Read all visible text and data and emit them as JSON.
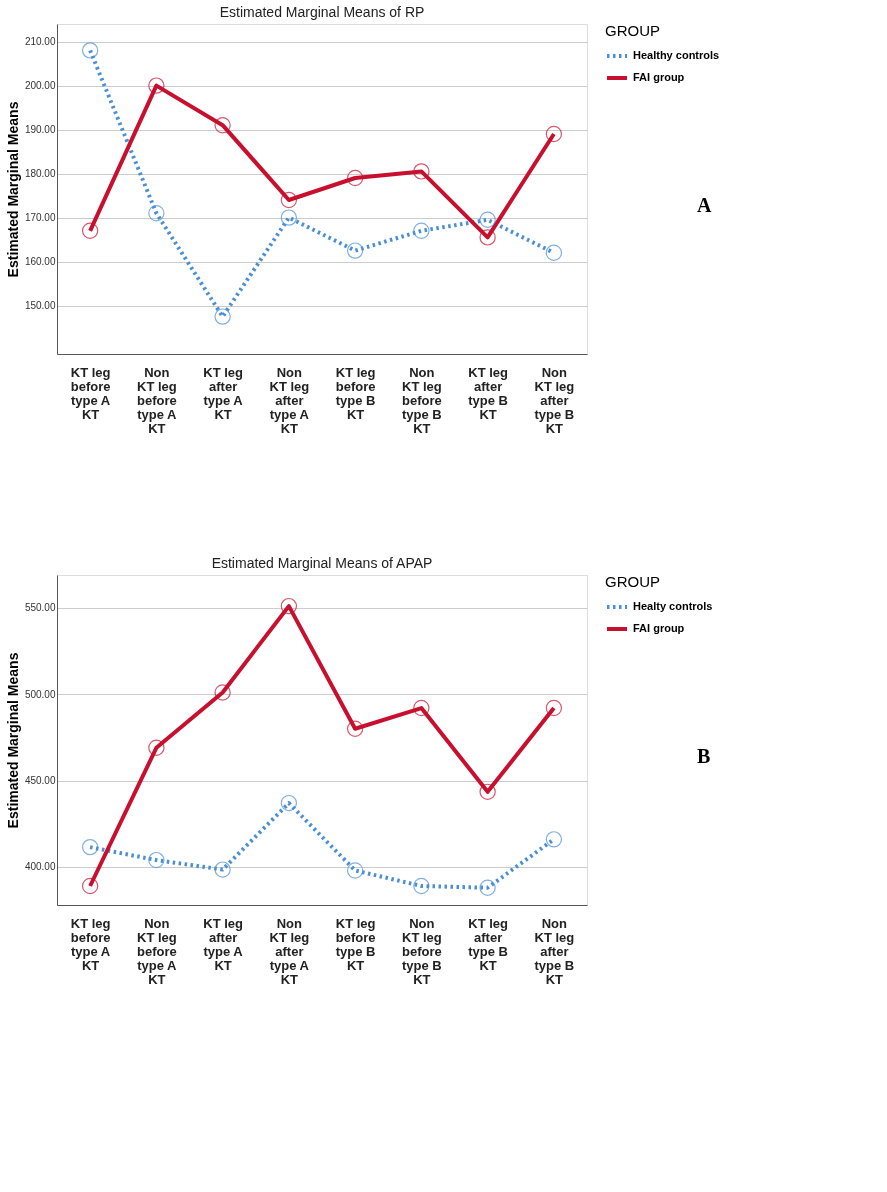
{
  "chart_data": [
    {
      "type": "line",
      "title": "Estimated Marginal Means of RP",
      "ylabel": "Estimated Marginal Means",
      "legend_title": "GROUP",
      "legend": "top right",
      "grid": "y",
      "marker": "circle",
      "categories": [
        "KT leg\nbefore\ntype A\nKT",
        "Non\nKT leg\nbefore\ntype A\nKT",
        "KT leg\nafter\ntype A\nKT",
        "Non\nKT leg\nafter\ntype A\nKT",
        "KT leg\nbefore\ntype B\nKT",
        "Non\nKT leg\nbefore\ntype B\nKT",
        "KT leg\nafter\ntype B\nKT",
        "Non\nKT leg\nafter\ntype B\nKT"
      ],
      "ylim": [
        139,
        214
      ],
      "yticks": [
        {
          "value": 150,
          "label": "150.00"
        },
        {
          "value": 160,
          "label": "160.00"
        },
        {
          "value": 170,
          "label": "170.00"
        },
        {
          "value": 180,
          "label": "180.00"
        },
        {
          "value": 190,
          "label": "190.00"
        },
        {
          "value": 200,
          "label": "200.00"
        },
        {
          "value": 210,
          "label": "210.00"
        }
      ],
      "series": [
        {
          "name": "Healthy controls",
          "color": "#4a8fd6",
          "line_style": "dotted",
          "values": [
            208,
            171,
            147.5,
            170,
            162.5,
            167,
            169.5,
            162
          ]
        },
        {
          "name": "FAI group",
          "color": "#c8102e",
          "line_style": "solid",
          "values": [
            167,
            200,
            191,
            174,
            179,
            180.5,
            165.5,
            189
          ]
        }
      ],
      "annotations": [
        "A"
      ]
    },
    {
      "type": "line",
      "title": "Estimated Marginal Means of APAP",
      "ylabel": "Estimated Marginal Means",
      "legend_title": "GROUP",
      "legend": "top right",
      "grid": "y",
      "marker": "circle",
      "categories": [
        "KT leg\nbefore\ntype A\nKT",
        "Non\nKT leg\nbefore\ntype A\nKT",
        "KT leg\nafter\ntype A\nKT",
        "Non\nKT leg\nafter\ntype A\nKT",
        "KT leg\nbefore\ntype B\nKT",
        "Non\nKT leg\nbefore\ntype B\nKT",
        "KT leg\nafter\ntype B\nKT",
        "Non\nKT leg\nafter\ntype B\nKT"
      ],
      "ylim": [
        378,
        569
      ],
      "yticks": [
        {
          "value": 400,
          "label": "400.00"
        },
        {
          "value": 450,
          "label": "450.00"
        },
        {
          "value": 500,
          "label": "500.00"
        },
        {
          "value": 550,
          "label": "550.00"
        }
      ],
      "series": [
        {
          "name": "Healty controls",
          "color": "#4a8fd6",
          "line_style": "dotted",
          "values": [
            411.5,
            404,
            398.5,
            437,
            398,
            389,
            388,
            416
          ]
        },
        {
          "name": "FAI group",
          "color": "#c8102e",
          "line_style": "solid",
          "values": [
            389,
            469,
            501,
            551,
            480,
            492,
            443.5,
            492
          ]
        }
      ],
      "annotations": [
        "B"
      ]
    }
  ]
}
